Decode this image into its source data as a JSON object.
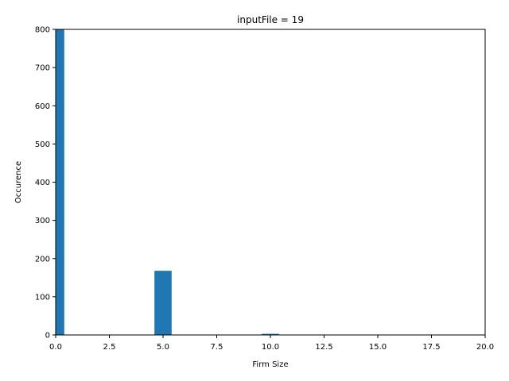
{
  "chart_data": {
    "type": "bar",
    "title": "inputFile = 19",
    "xlabel": "Firm Size",
    "ylabel": "Occurence",
    "xlim": [
      0,
      20
    ],
    "ylim": [
      0,
      800
    ],
    "xticks": [
      0,
      2.5,
      5,
      7.5,
      10,
      12.5,
      15,
      17.5,
      20
    ],
    "xtick_labels": [
      "0.0",
      "2.5",
      "5.0",
      "7.5",
      "10.0",
      "12.5",
      "15.0",
      "17.5",
      "20.0"
    ],
    "yticks": [
      0,
      100,
      200,
      300,
      400,
      500,
      600,
      700,
      800
    ],
    "ytick_labels": [
      "0",
      "100",
      "200",
      "300",
      "400",
      "500",
      "600",
      "700",
      "800"
    ],
    "grid": false,
    "bar_color": "#1f77b4",
    "bars": [
      {
        "x0": 0.0,
        "x1": 0.4,
        "value": 800
      },
      {
        "x0": 4.6,
        "x1": 5.4,
        "value": 168
      },
      {
        "x0": 9.6,
        "x1": 10.4,
        "value": 3
      }
    ]
  }
}
